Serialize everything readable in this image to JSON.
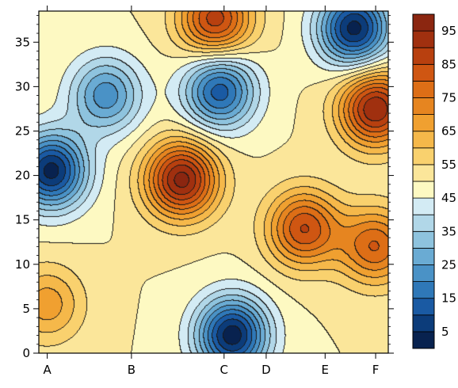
{
  "chart_data": {
    "type": "heatmap",
    "subtype": "filled-contour",
    "x_categories": [
      "A",
      "B",
      "C",
      "D",
      "E",
      "F"
    ],
    "x_category_positions": [
      0,
      1,
      2.1,
      2.6,
      3.3,
      3.9
    ],
    "xlim": [
      -0.1,
      4.05
    ],
    "ylim": [
      0,
      38.5
    ],
    "y_ticks": [
      0,
      5,
      10,
      15,
      20,
      25,
      30,
      35
    ],
    "colorbar": {
      "levels": [
        0,
        5,
        10,
        15,
        20,
        25,
        30,
        35,
        40,
        45,
        50,
        55,
        60,
        65,
        70,
        75,
        80,
        85,
        90,
        95,
        100
      ],
      "tick_labels": [
        5,
        15,
        25,
        35,
        45,
        55,
        65,
        75,
        85,
        95
      ],
      "colors": [
        "#08224f",
        "#0c3c7a",
        "#1a5aa3",
        "#2f78b8",
        "#4a92c6",
        "#6aabd3",
        "#8ec3de",
        "#b1d7e8",
        "#d3ebf4",
        "#fdf9c2",
        "#fbe69a",
        "#f9d16e",
        "#f5b84a",
        "#f0a030",
        "#e68520",
        "#dd6e16",
        "#cf5612",
        "#b8400f",
        "#a0300f",
        "#8b2610"
      ],
      "extent": [
        0,
        100
      ]
    },
    "features": [
      {
        "kind": "low",
        "x": 0.05,
        "y": 20.5,
        "value": 3
      },
      {
        "kind": "low",
        "x": 2.2,
        "y": 2.0,
        "value": 2
      },
      {
        "kind": "low",
        "x": 3.65,
        "y": 36.5,
        "value": 3
      },
      {
        "kind": "low",
        "x": 2.05,
        "y": 29.5,
        "value": 12
      },
      {
        "kind": "low",
        "x": 0.7,
        "y": 29.0,
        "value": 22
      },
      {
        "kind": "high",
        "x": 1.6,
        "y": 19.5,
        "value": 97
      },
      {
        "kind": "high",
        "x": 2.0,
        "y": 37.5,
        "value": 88
      },
      {
        "kind": "high",
        "x": 3.9,
        "y": 27.5,
        "value": 95
      },
      {
        "kind": "high",
        "x": 3.05,
        "y": 14.0,
        "value": 85
      },
      {
        "kind": "high",
        "x": 3.9,
        "y": 12.0,
        "value": 80
      },
      {
        "kind": "high",
        "x": 0.0,
        "y": 5.5,
        "value": 68
      }
    ],
    "base_value": 50
  }
}
